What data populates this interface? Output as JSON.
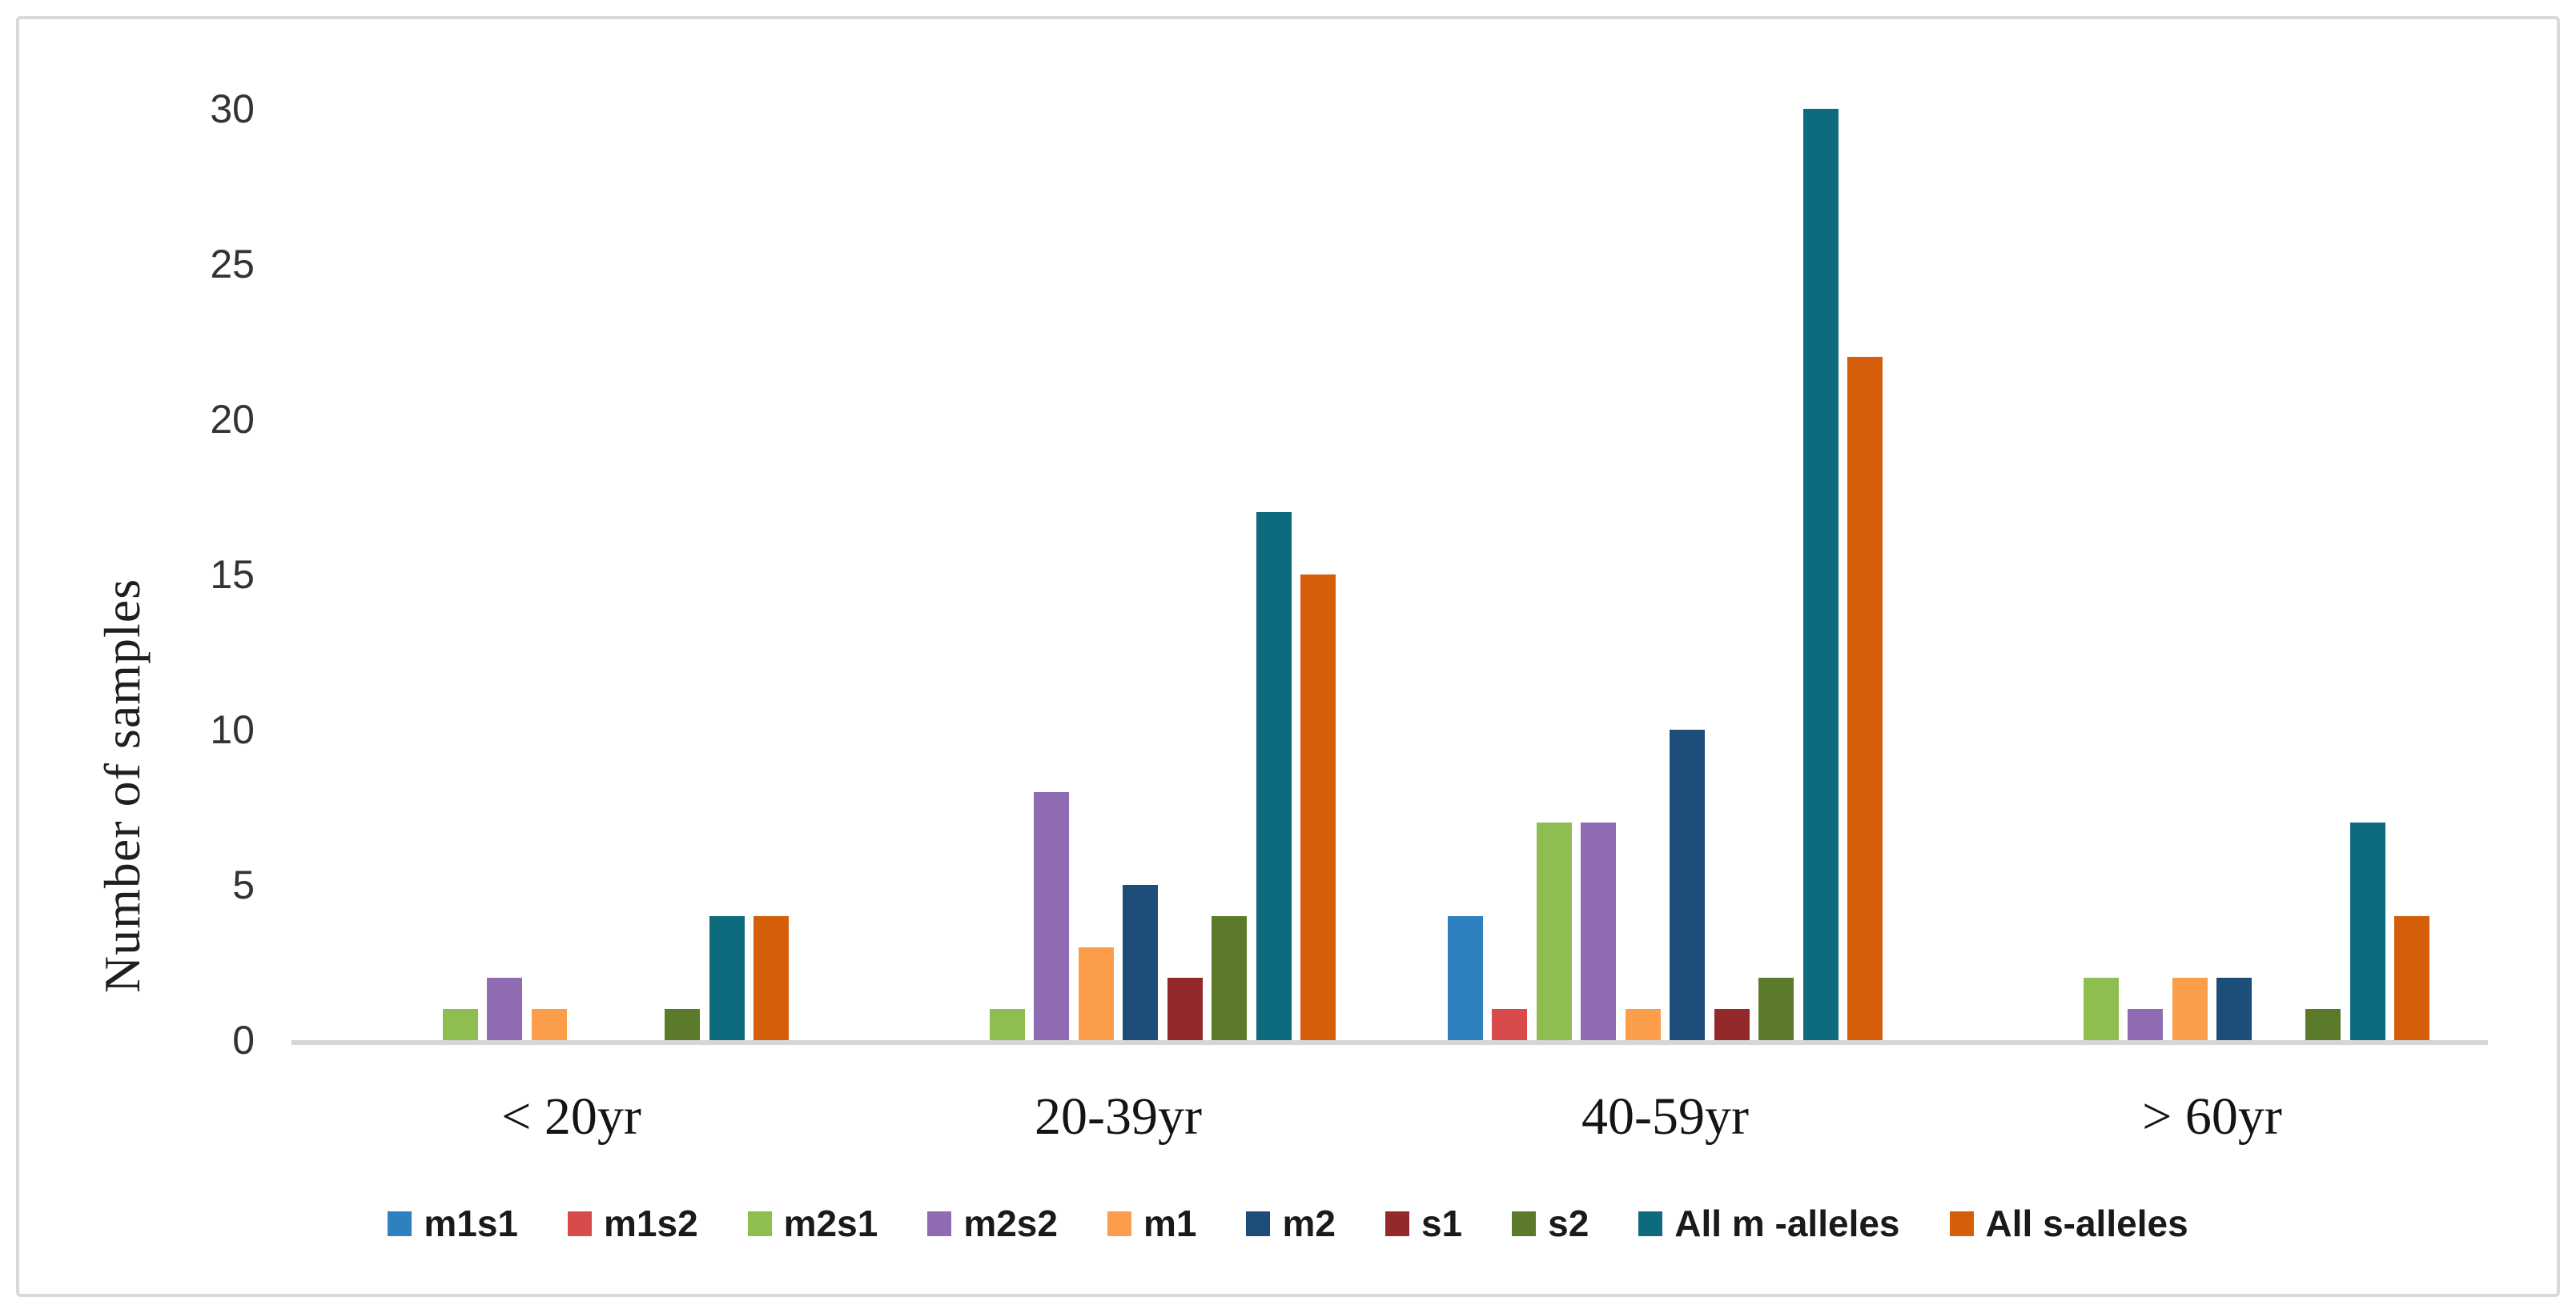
{
  "chart_data": {
    "type": "bar",
    "title": "",
    "xlabel": "",
    "ylabel": "Number of samples",
    "categories": [
      "< 20yr",
      "20-39yr",
      "40-59yr",
      "> 60yr"
    ],
    "series": [
      {
        "name": "m1s1",
        "color": "#2e80be",
        "values": [
          0,
          0,
          4,
          0
        ]
      },
      {
        "name": "m1s2",
        "color": "#d94b4b",
        "values": [
          0,
          0,
          1,
          0
        ]
      },
      {
        "name": "m2s1",
        "color": "#8dbe4f",
        "values": [
          1,
          1,
          7,
          2
        ]
      },
      {
        "name": "m2s2",
        "color": "#8f6cb2",
        "values": [
          2,
          8,
          7,
          1
        ]
      },
      {
        "name": "m1",
        "color": "#fc9e49",
        "values": [
          1,
          3,
          1,
          2
        ]
      },
      {
        "name": "m2",
        "color": "#1d4e79",
        "values": [
          0,
          5,
          10,
          2
        ]
      },
      {
        "name": "s1",
        "color": "#942929",
        "values": [
          0,
          2,
          1,
          0
        ]
      },
      {
        "name": "s2",
        "color": "#5b7b2a",
        "values": [
          1,
          4,
          2,
          1
        ]
      },
      {
        "name": "All m -alleles",
        "color": "#0e6b7e",
        "values": [
          4,
          17,
          30,
          7
        ]
      },
      {
        "name": "All s-alleles",
        "color": "#d55e0a",
        "values": [
          4,
          15,
          22,
          4
        ]
      }
    ],
    "yticks": [
      0,
      5,
      10,
      15,
      20,
      25,
      30
    ],
    "ylim": [
      0,
      30
    ],
    "grid": "off",
    "legend_position": "bottom",
    "axis_line_color": "#d6d6d6"
  }
}
